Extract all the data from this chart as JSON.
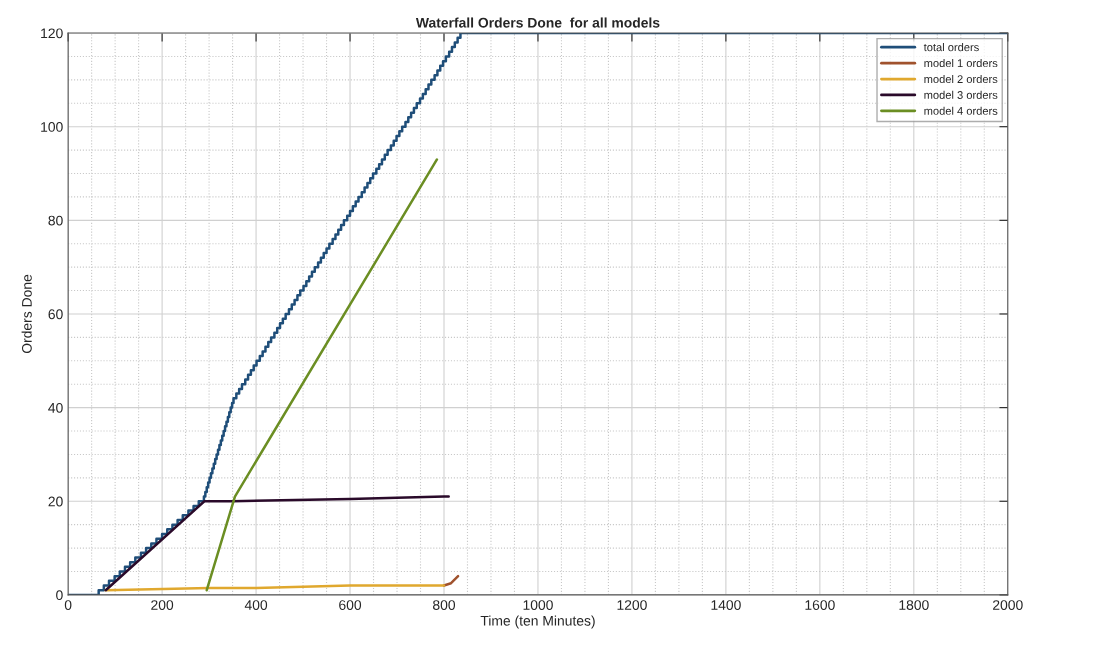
{
  "chart_data": {
    "type": "line",
    "title": "Waterfall Orders Done  for all models",
    "xlabel": "Time (ten Minutes)",
    "ylabel": "Orders Done",
    "xlim": [
      0,
      2000
    ],
    "xticks": [
      0,
      200,
      400,
      600,
      800,
      1000,
      1200,
      1400,
      1600,
      1800,
      2000
    ],
    "ylim": [
      0,
      120
    ],
    "yticks": [
      0,
      20,
      40,
      60,
      80,
      100,
      120
    ],
    "grid": true,
    "legend": "top right",
    "marker": "none",
    "line_style": "solid",
    "series": [
      {
        "name": "total orders",
        "color": "#1f4e79",
        "type": "step",
        "x": [
          0,
          65,
          76,
          87,
          99,
          110,
          121,
          132,
          143,
          155,
          166,
          177,
          188,
          200,
          211,
          222,
          233,
          244,
          256,
          267,
          278,
          289,
          292,
          295,
          298,
          301,
          304,
          307,
          310,
          313,
          316,
          319,
          322,
          325,
          328,
          331,
          334,
          337,
          340,
          343,
          346,
          349,
          352,
          358,
          364,
          370,
          377,
          383,
          389,
          395,
          401,
          408,
          414,
          420,
          426,
          432,
          439,
          445,
          451,
          457,
          463,
          470,
          476,
          482,
          488,
          494,
          501,
          507,
          513,
          519,
          525,
          532,
          538,
          544,
          550,
          556,
          563,
          569,
          575,
          581,
          587,
          594,
          600,
          606,
          612,
          618,
          625,
          631,
          637,
          643,
          649,
          656,
          662,
          668,
          674,
          680,
          687,
          693,
          699,
          705,
          711,
          718,
          724,
          730,
          736,
          742,
          749,
          755,
          761,
          767,
          773,
          780,
          786,
          792,
          798,
          804,
          811,
          817,
          823,
          829,
          835,
          2000
        ],
        "values": [
          0,
          1,
          2,
          3,
          4,
          5,
          6,
          7,
          8,
          9,
          10,
          11,
          12,
          13,
          14,
          15,
          16,
          17,
          18,
          19,
          20,
          21,
          22,
          23,
          24,
          25,
          26,
          27,
          28,
          29,
          30,
          31,
          32,
          33,
          34,
          35,
          36,
          37,
          38,
          39,
          40,
          41,
          42,
          43,
          44,
          45,
          46,
          47,
          48,
          49,
          50,
          51,
          52,
          53,
          54,
          55,
          56,
          57,
          58,
          59,
          60,
          61,
          62,
          63,
          64,
          65,
          66,
          67,
          68,
          69,
          70,
          71,
          72,
          73,
          74,
          75,
          76,
          77,
          78,
          79,
          80,
          81,
          82,
          83,
          84,
          85,
          86,
          87,
          88,
          89,
          90,
          91,
          92,
          93,
          94,
          95,
          96,
          97,
          98,
          99,
          100,
          101,
          102,
          103,
          104,
          105,
          106,
          107,
          108,
          109,
          110,
          111,
          112,
          113,
          114,
          115,
          116,
          117,
          118,
          119,
          120,
          120
        ]
      },
      {
        "name": "model 1 orders",
        "color": "#a0522d",
        "x": [
          800,
          815,
          830
        ],
        "values": [
          2,
          2.5,
          4
        ]
      },
      {
        "name": "model 2 orders",
        "color": "#e0a82e",
        "x": [
          80,
          300,
          400,
          600,
          800
        ],
        "values": [
          1,
          1.5,
          1.5,
          2,
          2
        ]
      },
      {
        "name": "model 3 orders",
        "color": "#2a0a2a",
        "x": [
          80,
          290,
          350,
          600,
          800,
          810
        ],
        "values": [
          1,
          20,
          20,
          20.5,
          21,
          21
        ]
      },
      {
        "name": "model 4 orders",
        "color": "#6b8e23",
        "x": [
          295,
          355,
          785
        ],
        "values": [
          1,
          21,
          93
        ]
      }
    ]
  }
}
